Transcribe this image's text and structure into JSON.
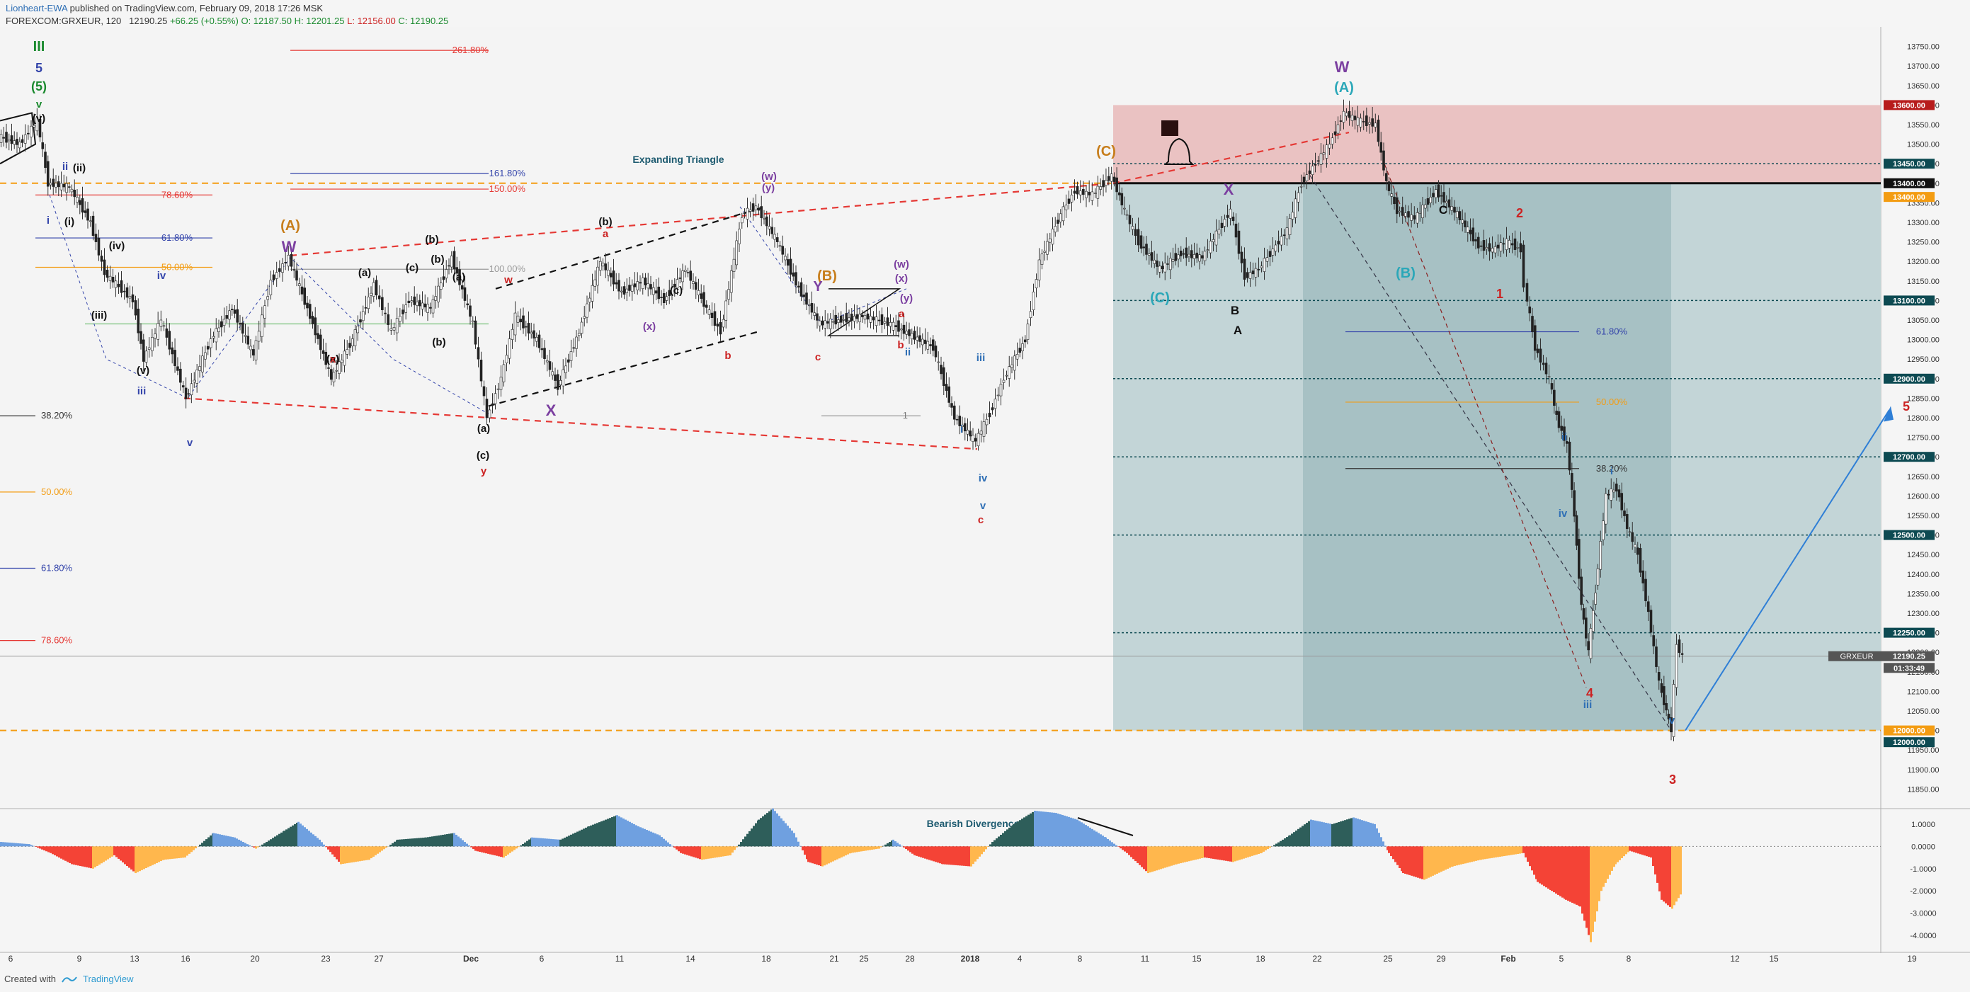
{
  "header": {
    "author": "Lionheart-EWA",
    "published": "published on TradingView.com, February 09, 2018 17:26 MSK",
    "symbol": "FOREXCOM:GRXEUR, 120",
    "last": "12190.25",
    "change": "+66.25 (+0.55%)",
    "open": "O: 12187.50",
    "high": "H: 12201.25",
    "low": "L: 12156.00",
    "close": "C: 12190.25"
  },
  "footer": {
    "created_with": "Created with",
    "brand": "TradingView"
  },
  "colors": {
    "up": "#1a8a2e",
    "down": "#cc2222",
    "resistance_zone": "#e8b8b8",
    "target_zone": "#b8cfd2",
    "orange_dash": "#f39c12",
    "red_dash": "#e53935",
    "blue_arrow": "#2f7fd6",
    "osc_pos_dark": "#2e5e5a",
    "osc_pos_light": "#6fa0e0",
    "osc_neg_red": "#f44336",
    "osc_neg_orange": "#ffb74d"
  },
  "chart_data": {
    "type": "line",
    "ylim": [
      11800,
      13800
    ],
    "price_ticks": [
      "13750.00",
      "13700.00",
      "13650.00",
      "13600.00",
      "13550.00",
      "13500.00",
      "13450.00",
      "13400.00",
      "13350.00",
      "13300.00",
      "13250.00",
      "13200.00",
      "13150.00",
      "13100.00",
      "13050.00",
      "13000.00",
      "12950.00",
      "12900.00",
      "12850.00",
      "12800.00",
      "12750.00",
      "12700.00",
      "12650.00",
      "12600.00",
      "12550.00",
      "12500.00",
      "12450.00",
      "12400.00",
      "12350.00",
      "12300.00",
      "12250.00",
      "12200.00",
      "12150.00",
      "12100.00",
      "12050.00",
      "12000.00",
      "11950.00",
      "11900.00",
      "11850.00"
    ],
    "price_badges": [
      {
        "label": "13600.00",
        "price": 13600,
        "color": "#b71c1c"
      },
      {
        "label": "13450.00",
        "price": 13450,
        "color": "#0d4a52"
      },
      {
        "label": "13400.00",
        "price": 13400,
        "color": "#111111"
      },
      {
        "label": "13400.00",
        "price": 13365,
        "color": "#f39c12"
      },
      {
        "label": "13100.00",
        "price": 13100,
        "color": "#0d4a52"
      },
      {
        "label": "12900.00",
        "price": 12900,
        "color": "#0d4a52"
      },
      {
        "label": "12700.00",
        "price": 12700,
        "color": "#0d4a52"
      },
      {
        "label": "12500.00",
        "price": 12500,
        "color": "#0d4a52"
      },
      {
        "label": "12250.00",
        "price": 12250,
        "color": "#0d4a52"
      },
      {
        "label": "12190.25",
        "price": 12190,
        "color": "#555555"
      },
      {
        "label": "01:33:49",
        "price": 12160,
        "color": "#555555"
      },
      {
        "label": "12000.00",
        "price": 12000,
        "color": "#f39c12"
      },
      {
        "label": "12000.00",
        "price": 11970,
        "color": "#0d4a52"
      }
    ],
    "symbol_tag": "GRXEUR",
    "x_ticks": [
      "6",
      "9",
      "13",
      "16",
      "20",
      "23",
      "27",
      "Dec",
      "6",
      "11",
      "14",
      "18",
      "21",
      "25",
      "28",
      "2018",
      "4",
      "8",
      "11",
      "15",
      "18",
      "22",
      "25",
      "29",
      "Feb",
      "5",
      "8",
      "12",
      "15",
      "19"
    ],
    "osc_ticks": [
      "1.0000",
      "0.0000",
      "-1.0000",
      "-2.0000",
      "-3.0000",
      "-4.0000"
    ],
    "osc_ylim": [
      -4.6,
      1.6
    ],
    "fib_labels": [
      {
        "text": "261.80%",
        "color": "#e53935"
      },
      {
        "text": "161.80%",
        "color": "#3344aa"
      },
      {
        "text": "150.00%",
        "color": "#e53935"
      },
      {
        "text": "78.60%",
        "color": "#e53935"
      },
      {
        "text": "61.80%",
        "color": "#3344aa"
      },
      {
        "text": "50.00%",
        "color": "#f39c12"
      },
      {
        "text": "100.00%",
        "color": "#999999"
      },
      {
        "text": "38.20%",
        "color": "#333333"
      },
      {
        "text": "50.00%",
        "color": "#f39c12"
      },
      {
        "text": "61.80%",
        "color": "#3344aa"
      },
      {
        "text": "78.60%",
        "color": "#e53935"
      },
      {
        "text": "61.80%",
        "color": "#3344aa"
      },
      {
        "text": "50.00%",
        "color": "#f39c12"
      },
      {
        "text": "38.20%",
        "color": "#333333"
      },
      {
        "text": "1",
        "color": "#777777"
      }
    ],
    "annotations": [
      {
        "text": "Expanding Triangle",
        "color": "#1e5b70"
      },
      {
        "text": "Bearish Divergence",
        "color": "#1e5b70"
      },
      {
        "text": "III",
        "color": "#1a8a2e"
      },
      {
        "text": "5",
        "color": "#3344aa"
      },
      {
        "text": "(5)",
        "color": "#1a8a2e"
      },
      {
        "text": "v",
        "color": "#1a8a2e"
      },
      {
        "text": "(v)",
        "color": "#111111"
      },
      {
        "text": "ii",
        "color": "#3344aa"
      },
      {
        "text": "(ii)",
        "color": "#111111"
      },
      {
        "text": "i",
        "color": "#3344aa"
      },
      {
        "text": "(i)",
        "color": "#111111"
      },
      {
        "text": "(iv)",
        "color": "#111111"
      },
      {
        "text": "iv",
        "color": "#3344aa"
      },
      {
        "text": "(iii)",
        "color": "#111111"
      },
      {
        "text": "(v)",
        "color": "#111111"
      },
      {
        "text": "iii",
        "color": "#3344aa"
      },
      {
        "text": "v",
        "color": "#3344aa"
      },
      {
        "text": "(A)",
        "color": "#c77d1a"
      },
      {
        "text": "W",
        "color": "#7b3fa0"
      },
      {
        "text": "(c)",
        "color": "#111111"
      },
      {
        "text": "(a)",
        "color": "#111111"
      },
      {
        "text": "(b)",
        "color": "#111111"
      },
      {
        "text": "(a)",
        "color": "#111111"
      },
      {
        "text": "(b)",
        "color": "#111111"
      },
      {
        "text": "(c)",
        "color": "#111111"
      },
      {
        "text": "(b)",
        "color": "#111111"
      },
      {
        "text": "(a)",
        "color": "#111111"
      },
      {
        "text": "x",
        "color": "#cc2222"
      },
      {
        "text": "w",
        "color": "#cc2222"
      },
      {
        "text": "(a)",
        "color": "#111111"
      },
      {
        "text": "(c)",
        "color": "#111111"
      },
      {
        "text": "y",
        "color": "#cc2222"
      },
      {
        "text": "X",
        "color": "#7b3fa0"
      },
      {
        "text": "(b)",
        "color": "#111111"
      },
      {
        "text": "a",
        "color": "#cc2222"
      },
      {
        "text": "(c)",
        "color": "#111111"
      },
      {
        "text": "(x)",
        "color": "#7b3fa0"
      },
      {
        "text": "(w)",
        "color": "#7b3fa0"
      },
      {
        "text": "(y)",
        "color": "#7b3fa0"
      },
      {
        "text": "b",
        "color": "#cc2222"
      },
      {
        "text": "(B)",
        "color": "#c77d1a"
      },
      {
        "text": "Y",
        "color": "#7b3fa0"
      },
      {
        "text": "c",
        "color": "#cc2222"
      },
      {
        "text": "(w)",
        "color": "#7b3fa0"
      },
      {
        "text": "(x)",
        "color": "#7b3fa0"
      },
      {
        "text": "a",
        "color": "#cc2222"
      },
      {
        "text": "b",
        "color": "#cc2222"
      },
      {
        "text": "(y)",
        "color": "#7b3fa0"
      },
      {
        "text": "ii",
        "color": "#2f6fb5"
      },
      {
        "text": "i",
        "color": "#2f6fb5"
      },
      {
        "text": "iii",
        "color": "#2f6fb5"
      },
      {
        "text": "iv",
        "color": "#2f6fb5"
      },
      {
        "text": "v",
        "color": "#2f6fb5"
      },
      {
        "text": "c",
        "color": "#cc2222"
      },
      {
        "text": "(C)",
        "color": "#c77d1a"
      },
      {
        "text": "W",
        "color": "#7b3fa0"
      },
      {
        "text": "(A)",
        "color": "#2aa7b8"
      },
      {
        "text": "X",
        "color": "#7b3fa0"
      },
      {
        "text": "(C)",
        "color": "#2aa7b8"
      },
      {
        "text": "B",
        "color": "#111111"
      },
      {
        "text": "A",
        "color": "#111111"
      },
      {
        "text": "C",
        "color": "#111111"
      },
      {
        "text": "(B)",
        "color": "#2aa7b8"
      },
      {
        "text": "2",
        "color": "#cc2222"
      },
      {
        "text": "1",
        "color": "#cc2222"
      },
      {
        "text": "ii",
        "color": "#2f6fb5"
      },
      {
        "text": "i",
        "color": "#2f6fb5"
      },
      {
        "text": "iv",
        "color": "#2f6fb5"
      },
      {
        "text": "4",
        "color": "#cc2222"
      },
      {
        "text": "iii",
        "color": "#2f6fb5"
      },
      {
        "text": "v",
        "color": "#2f6fb5"
      },
      {
        "text": "3",
        "color": "#cc2222"
      },
      {
        "text": "5",
        "color": "#cc2222"
      },
      {
        "text": "(A)",
        "color": "#2aa7b8"
      },
      {
        "text": "(B)",
        "color": "#2aa7b8"
      }
    ]
  }
}
